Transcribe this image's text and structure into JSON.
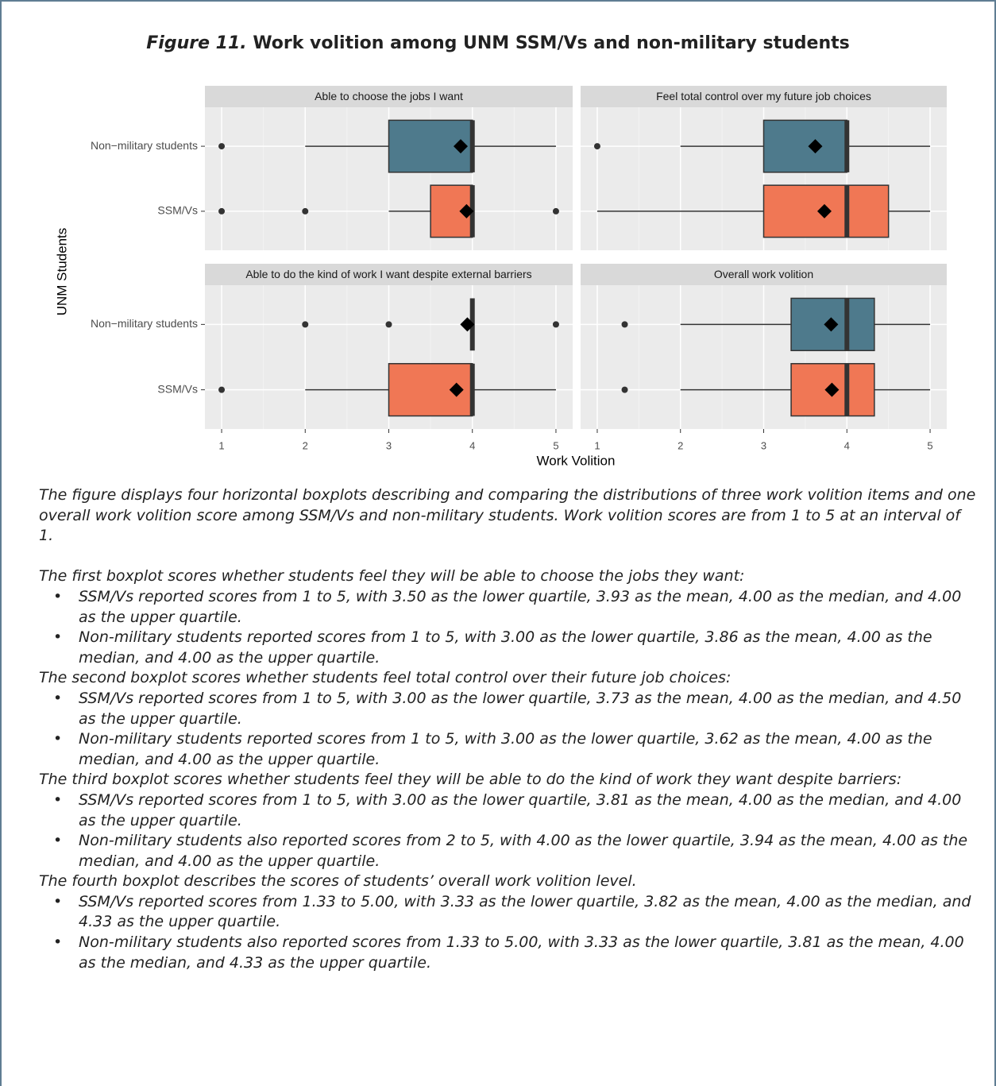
{
  "figure_label": "Figure 11.",
  "figure_title": "Work volition among UNM SSM/Vs and non-military students",
  "shared": {
    "x_label": "Work Volition",
    "y_label": "UNM Students",
    "categories": [
      "Non−military students",
      "SSM/Vs"
    ],
    "colors": [
      "#4e7a8c",
      "#f07755"
    ],
    "xlim": [
      0.8,
      5.2
    ],
    "xticks": [
      1,
      2,
      3,
      4,
      5
    ],
    "grid": true
  },
  "chart_data": [
    {
      "type": "box",
      "title": "Able to choose the jobs I want",
      "boxes": [
        {
          "whisker_low": 2,
          "q1": 3,
          "median": 4,
          "q3": 4,
          "whisker_high": 5,
          "mean": 3.86,
          "outliers": [
            1
          ]
        },
        {
          "whisker_low": 3,
          "q1": 3.5,
          "median": 4,
          "q3": 4,
          "whisker_high": 4,
          "mean": 3.93,
          "outliers": [
            1,
            2,
            5
          ]
        }
      ]
    },
    {
      "type": "box",
      "title": "Feel total control over my future job choices",
      "boxes": [
        {
          "whisker_low": 2,
          "q1": 3,
          "median": 4,
          "q3": 4,
          "whisker_high": 5,
          "mean": 3.62,
          "outliers": [
            1
          ]
        },
        {
          "whisker_low": 1,
          "q1": 3,
          "median": 4,
          "q3": 4.5,
          "whisker_high": 5,
          "mean": 3.73,
          "outliers": []
        }
      ]
    },
    {
      "type": "box",
      "title": "Able to do the kind of work I want despite external barriers",
      "boxes": [
        {
          "whisker_low": 4,
          "q1": 4,
          "median": 4,
          "q3": 4,
          "whisker_high": 4,
          "mean": 3.94,
          "outliers": [
            2,
            3,
            5
          ]
        },
        {
          "whisker_low": 2,
          "q1": 3,
          "median": 4,
          "q3": 4,
          "whisker_high": 5,
          "mean": 3.81,
          "outliers": [
            1
          ]
        }
      ]
    },
    {
      "type": "box",
      "title": "Overall work volition",
      "boxes": [
        {
          "whisker_low": 2,
          "q1": 3.33,
          "median": 4,
          "q3": 4.33,
          "whisker_high": 5,
          "mean": 3.81,
          "outliers": [
            1.33
          ]
        },
        {
          "whisker_low": 2,
          "q1": 3.33,
          "median": 4,
          "q3": 4.33,
          "whisker_high": 5,
          "mean": 3.82,
          "outliers": [
            1.33
          ]
        }
      ]
    }
  ],
  "description": "The figure displays four horizontal boxplots describing and comparing the distributions of three work volition items and one overall work volition score among SSM/Vs and non-military students. Work volition scores are from 1 to 5 at an interval of 1.",
  "sections": [
    {
      "heading": "The first boxplot scores whether students feel they will be able to choose the jobs they want:",
      "bullets": [
        "SSM/Vs reported scores from 1 to 5, with 3.50 as the lower quartile, 3.93 as the mean, 4.00 as the median, and 4.00 as the upper quartile.",
        "Non-military students reported scores from 1 to 5, with 3.00 as the lower quartile, 3.86 as the mean, 4.00 as the median, and 4.00 as the upper quartile."
      ]
    },
    {
      "heading": "The second boxplot scores whether students feel total control over their future job choices:",
      "bullets": [
        "SSM/Vs reported scores from 1 to 5, with 3.00 as the lower quartile, 3.73 as the mean, 4.00 as the median, and 4.50 as the upper quartile.",
        "Non-military students reported scores from 1 to 5, with 3.00 as the lower quartile, 3.62 as the mean, 4.00 as the median, and 4.00 as the upper quartile."
      ]
    },
    {
      "heading": "The third boxplot scores whether students feel they will be able to do the kind of work they want despite barriers:",
      "bullets": [
        "SSM/Vs reported scores from 1 to 5, with 3.00 as the lower quartile, 3.81 as the mean, 4.00 as the median, and 4.00 as the upper quartile.",
        "Non-military students also reported scores from 2 to 5, with 4.00 as the lower quartile, 3.94 as the mean, 4.00 as the median, and 4.00 as the upper quartile."
      ]
    },
    {
      "heading": "The fourth boxplot describes the scores of students’ overall work volition level.",
      "bullets": [
        "SSM/Vs reported scores from 1.33 to 5.00, with 3.33 as the lower quartile, 3.82 as the mean, 4.00 as the median, and 4.33 as the upper quartile.",
        "Non-military students also reported scores from 1.33 to 5.00, with 3.33 as the lower quartile, 3.81 as the mean, 4.00 as the median, and 4.33 as the upper quartile."
      ]
    }
  ]
}
